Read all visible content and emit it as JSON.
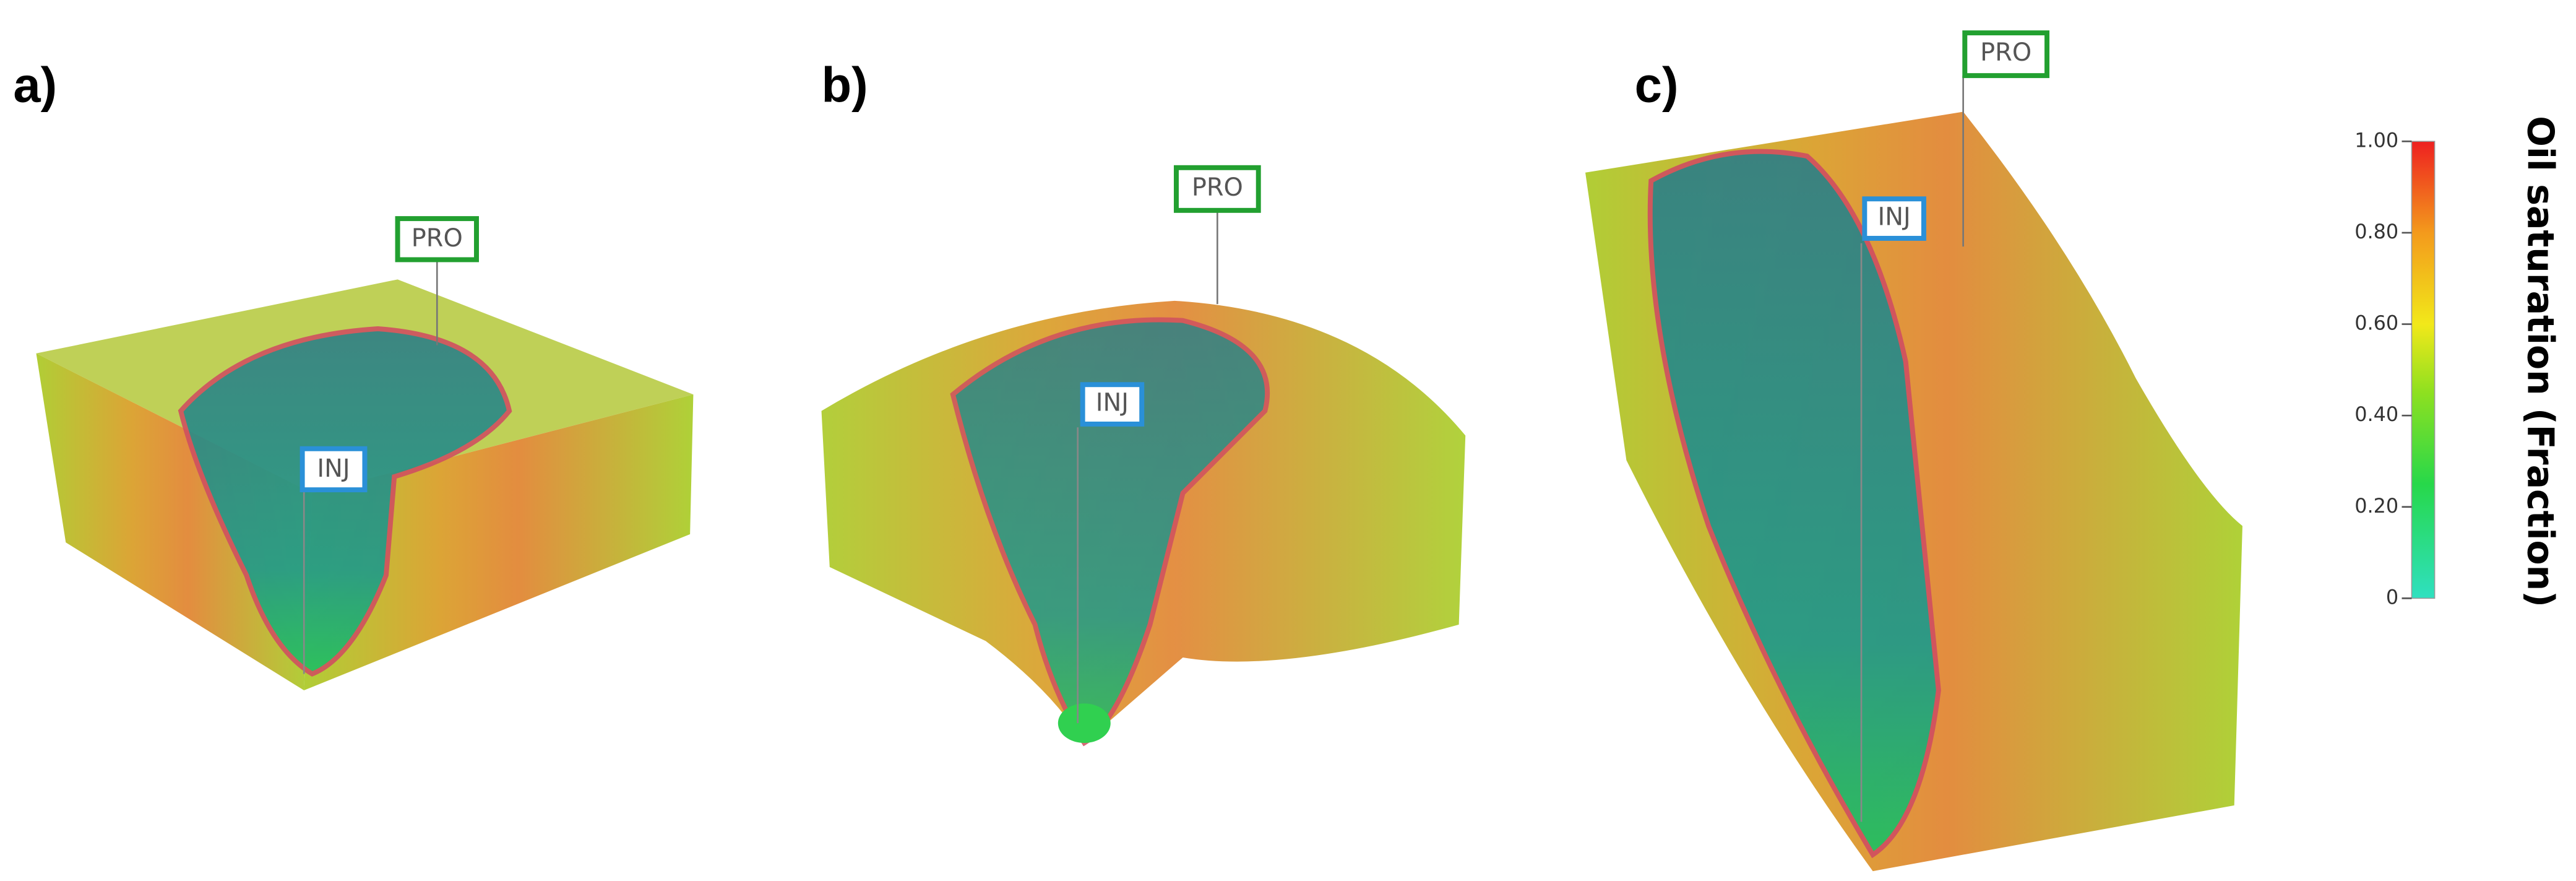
{
  "panels": [
    {
      "label": "a)",
      "producer": "PRO",
      "injector": "INJ"
    },
    {
      "label": "b)",
      "producer": "PRO",
      "injector": "INJ"
    },
    {
      "label": "c)",
      "producer": "PRO",
      "injector": "INJ"
    }
  ],
  "colorbar": {
    "title": "Oil saturation (Fraction)",
    "ylim": [
      0,
      1
    ],
    "ticks": [
      {
        "value": 1,
        "label": "1.00"
      },
      {
        "value": 0.8,
        "label": "0.80"
      },
      {
        "value": 0.6,
        "label": "0.60"
      },
      {
        "value": 0.4,
        "label": "0.40"
      },
      {
        "value": 0.2,
        "label": "0.20"
      },
      0
    ]
  }
}
